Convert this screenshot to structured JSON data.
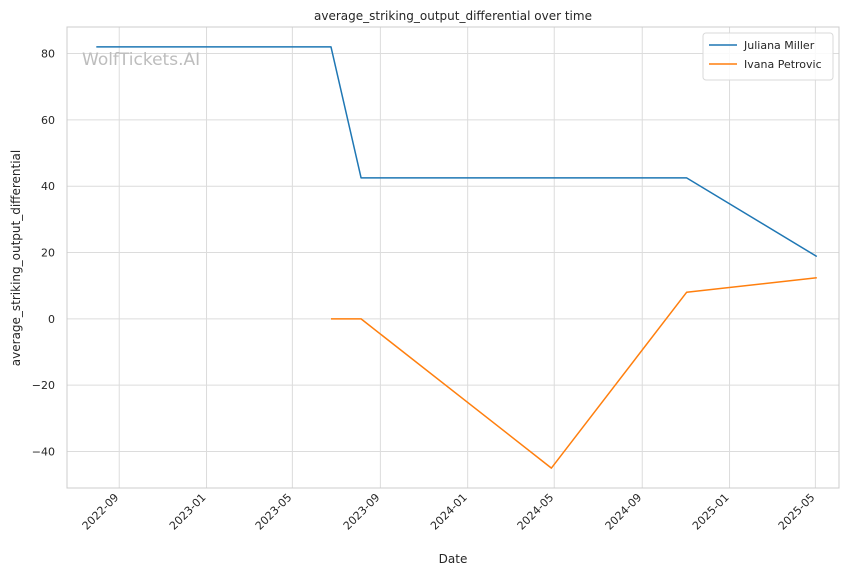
{
  "watermark": "WolfTickets.AI",
  "chart_data": {
    "type": "line",
    "title": "average_striking_output_differential over time",
    "xlabel": "Date",
    "ylabel": "average_striking_output_differential",
    "x_ticks": [
      "2022-09",
      "2023-01",
      "2023-05",
      "2023-09",
      "2024-01",
      "2024-05",
      "2024-09",
      "2025-01",
      "2025-05"
    ],
    "y_ticks": [
      80,
      60,
      40,
      20,
      0,
      -20,
      -40
    ],
    "xlim": [
      "2022-06-20",
      "2025-06-03"
    ],
    "ylim": [
      -51,
      88
    ],
    "grid": true,
    "legend_position": "top-right",
    "series": [
      {
        "name": "Juliana Miller",
        "color": "#1f77b4",
        "points": [
          {
            "x": "2022-07-31",
            "y": 82
          },
          {
            "x": "2023-06-24",
            "y": 82
          },
          {
            "x": "2023-08-05",
            "y": 42.5
          },
          {
            "x": "2024-11-02",
            "y": 42.5
          },
          {
            "x": "2025-05-03",
            "y": 18.8
          }
        ]
      },
      {
        "name": "Ivana Petrovic",
        "color": "#ff7f0e",
        "points": [
          {
            "x": "2023-06-24",
            "y": 0
          },
          {
            "x": "2023-08-05",
            "y": 0
          },
          {
            "x": "2024-04-27",
            "y": -45
          },
          {
            "x": "2024-11-02",
            "y": 8
          },
          {
            "x": "2025-05-03",
            "y": 12.4
          }
        ]
      }
    ]
  }
}
